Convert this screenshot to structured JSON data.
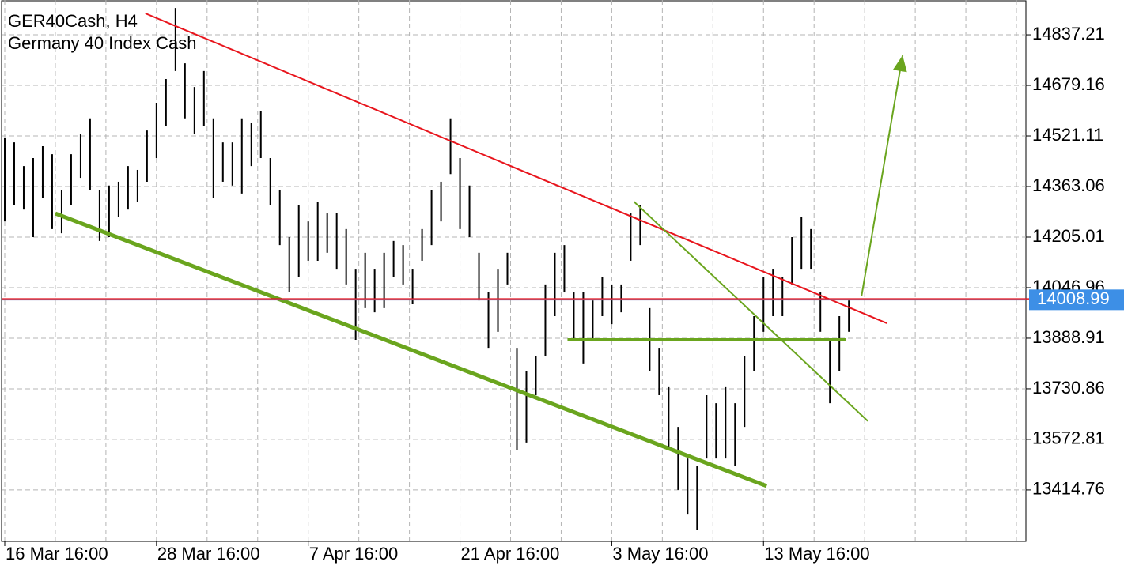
{
  "chart_data": {
    "type": "ohlc",
    "title": "GER40Cash, H4",
    "subtitle": "Germany 40 Index Cash",
    "x": [
      0,
      3,
      6,
      9,
      12,
      15,
      18,
      21,
      24,
      27,
      30,
      33,
      36,
      39,
      42,
      45,
      48,
      51,
      54,
      57,
      60,
      63,
      66,
      69,
      72,
      75,
      78,
      81,
      84,
      87,
      90,
      93,
      96,
      99,
      102,
      105,
      108,
      111,
      114,
      117,
      120,
      123,
      126,
      129,
      132,
      135,
      138,
      141,
      144,
      147,
      150,
      153,
      156,
      159,
      162,
      165,
      168,
      171,
      174,
      177,
      180,
      183,
      186,
      189,
      192,
      195,
      198,
      201,
      204,
      207,
      210,
      213,
      216,
      219,
      222,
      225,
      228,
      231,
      234,
      237,
      240,
      243,
      246,
      249,
      252,
      255,
      258,
      261,
      264,
      267
    ],
    "high": [
      14514,
      14501,
      14427,
      14452,
      14489,
      14464,
      14353,
      14464,
      14526,
      14576,
      14353,
      14366,
      14378,
      14427,
      14415,
      14538,
      14625,
      14699,
      14921,
      14748,
      14674,
      14724,
      14576,
      14501,
      14501,
      14576,
      14563,
      14600,
      14452,
      14353,
      14205,
      14304,
      14254,
      14316,
      14279,
      14279,
      14230,
      14106,
      14156,
      14106,
      14156,
      14193,
      14180,
      14106,
      14230,
      14353,
      14378,
      14576,
      14452,
      14366,
      14156,
      14032,
      14106,
      14156,
      13859,
      13785,
      13834,
      14057,
      14156,
      14180,
      14032,
      14032,
      14007,
      14081,
      14057,
      14057,
      14279,
      14304,
      13983,
      13859,
      13736,
      13612,
      13513,
      13489,
      13711,
      13686,
      13736,
      13686,
      13834,
      13958,
      14081,
      14106,
      14081,
      14205,
      14267,
      14230,
      14032,
      13884,
      13958,
      14007
    ],
    "low": [
      14254,
      14304,
      14291,
      14205,
      14328,
      14230,
      14217,
      14304,
      14390,
      14353,
      14193,
      14205,
      14267,
      14291,
      14316,
      14378,
      14452,
      14551,
      14724,
      14576,
      14526,
      14551,
      14328,
      14378,
      14366,
      14341,
      14427,
      14452,
      14304,
      14180,
      14032,
      14081,
      14131,
      14131,
      14156,
      14106,
      14057,
      13884,
      13983,
      13970,
      13983,
      14081,
      14057,
      13995,
      14131,
      14180,
      14254,
      14402,
      14230,
      14205,
      14007,
      13859,
      13909,
      14057,
      13538,
      13563,
      13711,
      13834,
      13958,
      14032,
      13884,
      13810,
      13884,
      13958,
      13933,
      13970,
      14131,
      14180,
      13785,
      13711,
      13538,
      13415,
      13340,
      13291,
      13513,
      13513,
      13513,
      13489,
      13612,
      13785,
      13909,
      13958,
      13958,
      14057,
      14106,
      14106,
      13909,
      13686,
      13785,
      13909
    ],
    "color": "#000000",
    "xlim": [
      -1,
      323
    ],
    "ylim": [
      13254,
      14946
    ],
    "xticks": [
      {
        "value": 0,
        "label": "16 Mar 16:00"
      },
      {
        "value": 48,
        "label": "28 Mar 16:00"
      },
      {
        "value": 96,
        "label": "7 Apr 16:00"
      },
      {
        "value": 144,
        "label": "21 Apr 16:00"
      },
      {
        "value": 192,
        "label": "3 May 16:00"
      },
      {
        "value": 240,
        "label": "13 May 16:00"
      }
    ],
    "xgrid": [
      16,
      32,
      64,
      80,
      112,
      128,
      160,
      176,
      208,
      224,
      256,
      272,
      288,
      304,
      320
    ],
    "yticks": [
      13414.76,
      13572.81,
      13730.86,
      13888.91,
      14046.96,
      14205.01,
      14363.06,
      14521.11,
      14679.16,
      14837.21
    ],
    "grid": true,
    "ask_price": 14012,
    "current_price": 14008.99,
    "trendlines": [
      {
        "x": [
          44.5,
          279
        ],
        "y": [
          14904,
          13936
        ],
        "color": "#e8141c",
        "width": 2
      },
      {
        "x": [
          16,
          241
        ],
        "y": [
          14279,
          13427
        ],
        "color": "#6aa51e",
        "width": 5
      },
      {
        "x": [
          199,
          273
        ],
        "y": [
          14316,
          13630
        ],
        "color": "#6aa51e",
        "width": 2
      },
      {
        "x": [
          178,
          266
        ],
        "y": [
          13884,
          13884
        ],
        "color": "#6aa51e",
        "width": 4
      }
    ],
    "arrow": {
      "x": [
        271,
        284
      ],
      "y": [
        14020,
        14773
      ],
      "color": "#6aa51e"
    }
  }
}
